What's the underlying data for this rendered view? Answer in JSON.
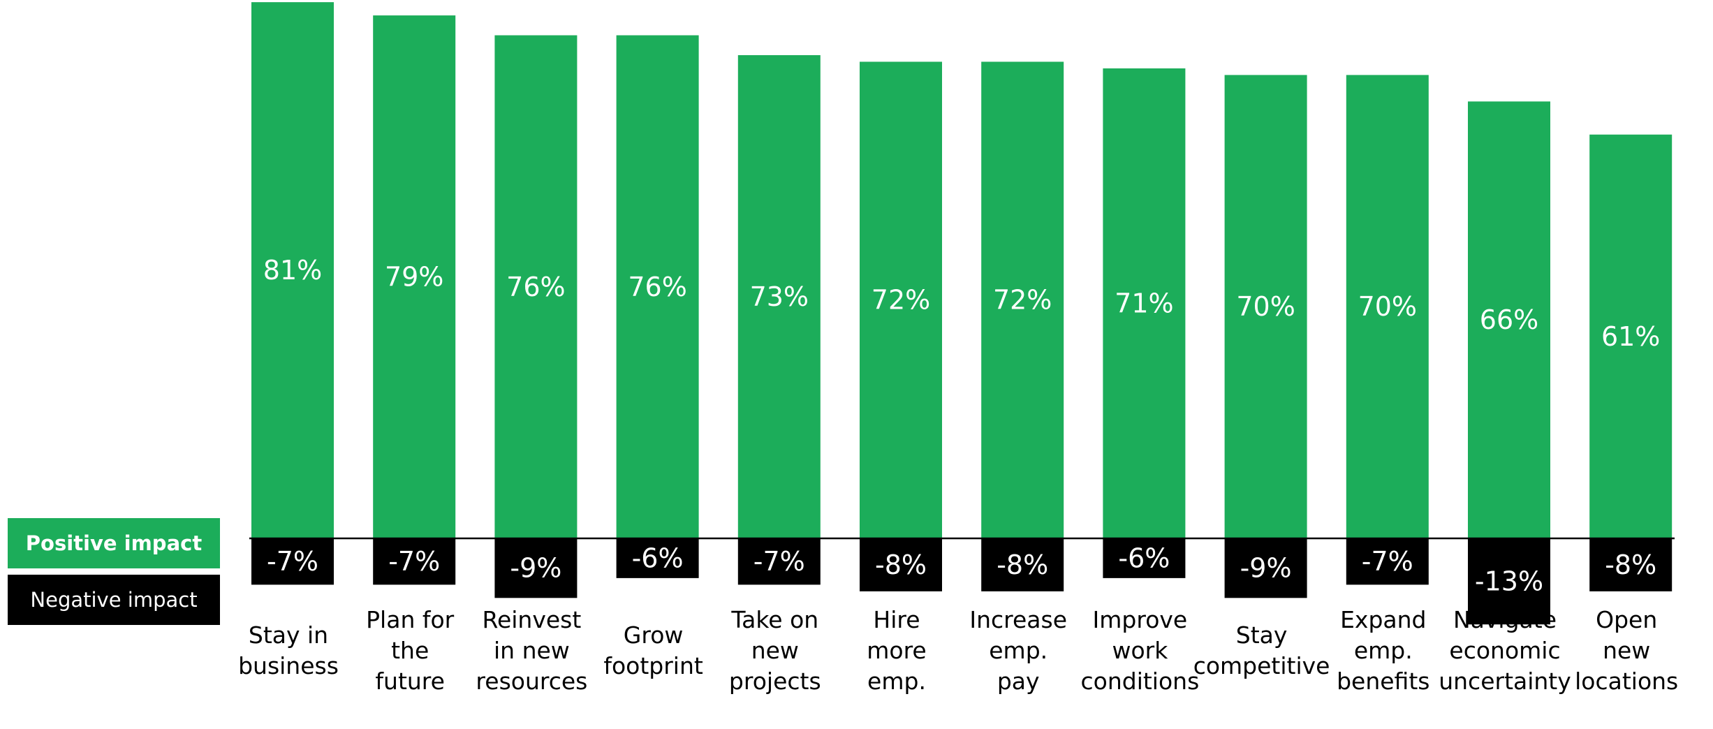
{
  "chart_data": {
    "type": "bar",
    "categories": [
      "Stay in business",
      "Plan for the future",
      "Reinvest in new resources",
      "Grow footprint",
      "Take on new projects",
      "Hire more emp.",
      "Increase emp. pay",
      "Improve work conditions",
      "Stay competitive",
      "Expand emp. benefits",
      "Navigate economic uncertainty",
      "Open new locations"
    ],
    "category_lines": [
      [
        "Stay in",
        "business"
      ],
      [
        "Plan for",
        "the",
        "future"
      ],
      [
        "Reinvest",
        "in new",
        "resources"
      ],
      [
        "Grow",
        "footprint"
      ],
      [
        "Take on",
        "new",
        "projects"
      ],
      [
        "Hire",
        "more",
        "emp."
      ],
      [
        "Increase",
        "emp.",
        "pay"
      ],
      [
        "Improve",
        "work",
        "conditions"
      ],
      [
        "Stay",
        "competitive"
      ],
      [
        "Expand",
        "emp.",
        "benefits"
      ],
      [
        "Navigate",
        "economic",
        "uncertainty"
      ],
      [
        "Open",
        "new",
        "locations"
      ]
    ],
    "series": [
      {
        "name": "Positive impact",
        "color": "#1cad5a",
        "values": [
          81,
          79,
          76,
          76,
          73,
          72,
          72,
          71,
          70,
          70,
          66,
          61
        ],
        "labels": [
          "81%",
          "79%",
          "76%",
          "76%",
          "73%",
          "72%",
          "72%",
          "71%",
          "70%",
          "70%",
          "66%",
          "61%"
        ]
      },
      {
        "name": "Negative impact",
        "color": "#000000",
        "values": [
          -7,
          -7,
          -9,
          -6,
          -7,
          -8,
          -8,
          -6,
          -9,
          -7,
          -13,
          -8
        ],
        "labels": [
          "-7%",
          "-7%",
          "-9%",
          "-6%",
          "-7%",
          "-8%",
          "-8%",
          "-6%",
          "-9%",
          "-7%",
          "-13%",
          "-8%"
        ]
      }
    ],
    "legend": {
      "placement": "left",
      "position_label": "Positive impact",
      "negative_label": "Negative impact"
    },
    "grid": false,
    "baseline": 0
  }
}
